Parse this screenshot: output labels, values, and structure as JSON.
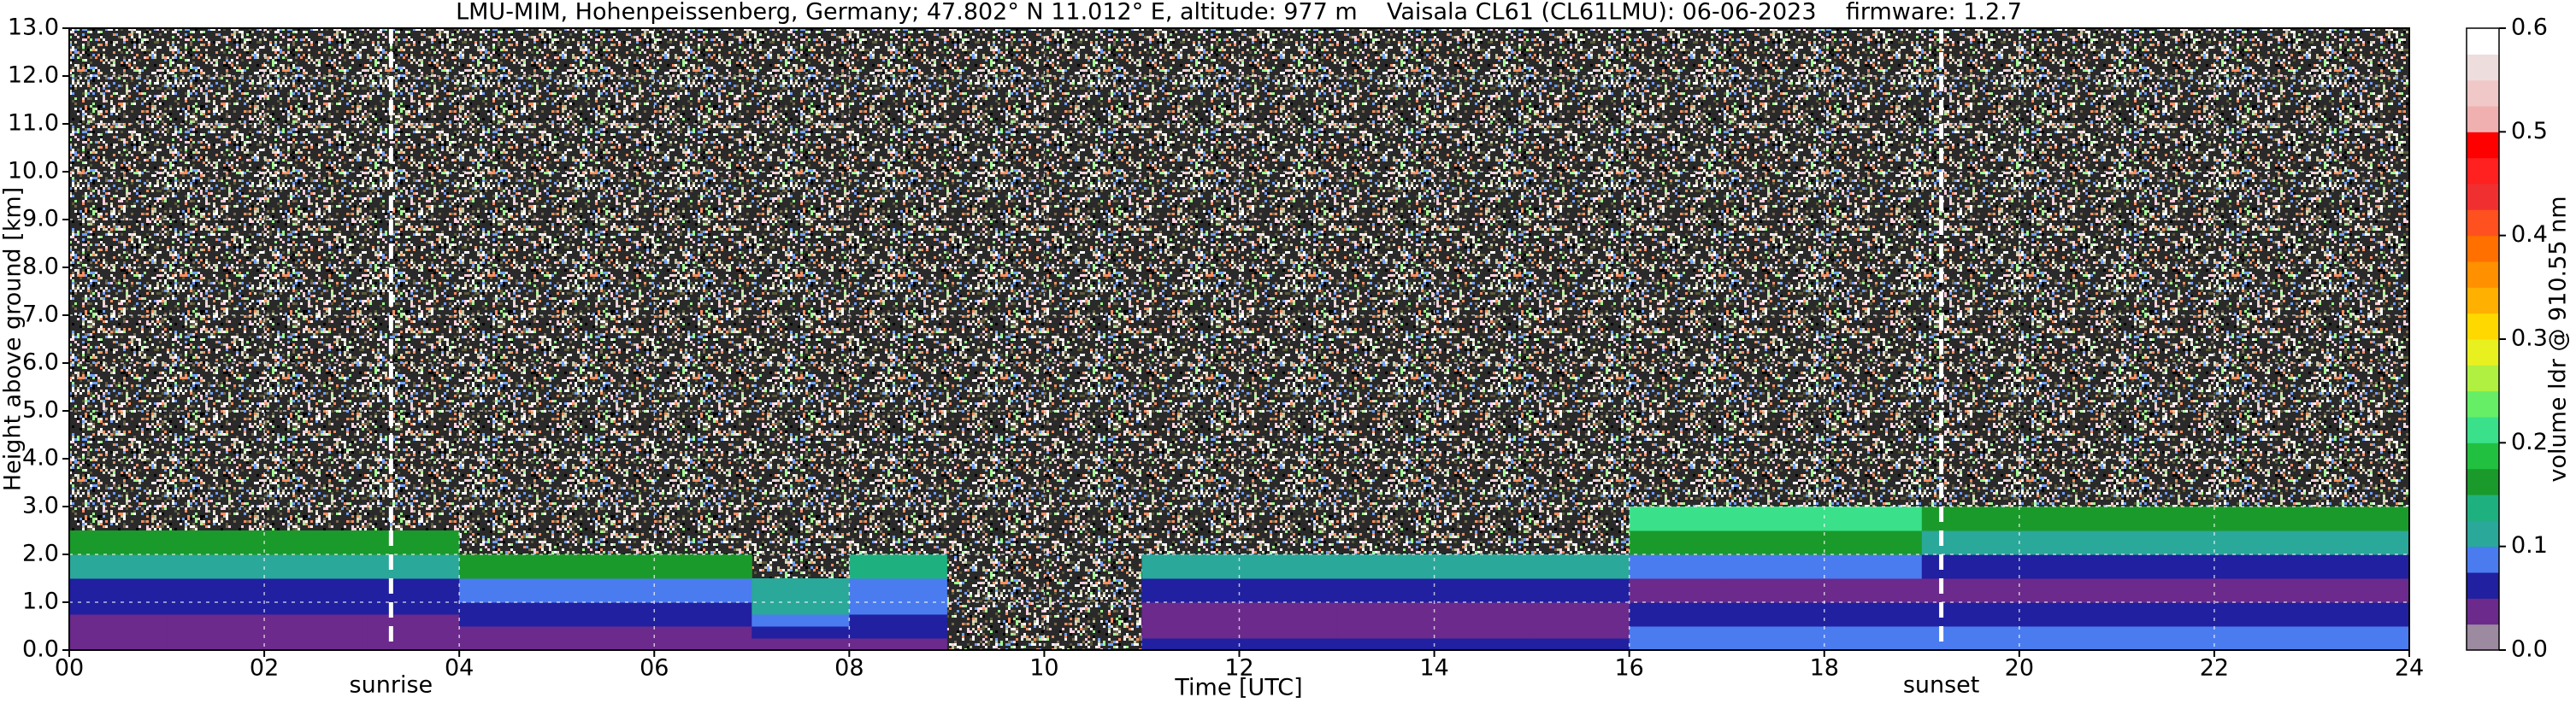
{
  "chart_data": {
    "type": "heatmap",
    "title": "LMU-MIM, Hohenpeissenberg, Germany; 47.802° N 11.012° E, altitude: 977 m    Vaisala CL61 (CL61LMU): 06-06-2023    firmware: 1.2.7",
    "x_label": "Time [UTC]",
    "y_label": "Height above ground [km]",
    "xlim": [
      0,
      24
    ],
    "ylim": [
      0,
      13
    ],
    "xticks": [
      {
        "value": 0,
        "label": "00"
      },
      {
        "value": 2,
        "label": "02"
      },
      {
        "value": 4,
        "label": "04"
      },
      {
        "value": 6,
        "label": "06"
      },
      {
        "value": 8,
        "label": "08"
      },
      10,
      12,
      14,
      16,
      18,
      20,
      22,
      24
    ],
    "yticks": [
      {
        "value": 0,
        "label": "0.0"
      },
      {
        "value": 1,
        "label": "1.0"
      },
      {
        "value": 2,
        "label": "2.0"
      },
      {
        "value": 3,
        "label": "3.0"
      },
      {
        "value": 4,
        "label": "4.0"
      },
      {
        "value": 5,
        "label": "5.0"
      },
      {
        "value": 6,
        "label": "6.0"
      },
      {
        "value": 7,
        "label": "7.0"
      },
      {
        "value": 8,
        "label": "8.0"
      },
      {
        "value": 9,
        "label": "9.0"
      },
      {
        "value": 10,
        "label": "10.0"
      },
      {
        "value": 11,
        "label": "11.0"
      },
      {
        "value": 12,
        "label": "12.0"
      },
      {
        "value": 13,
        "label": "13.0"
      }
    ],
    "grid": true,
    "x_edges": [
      0,
      1,
      2,
      3,
      4,
      5,
      6,
      7,
      8,
      9,
      10,
      11,
      12,
      13,
      14,
      15,
      16,
      17,
      18,
      19,
      20,
      21,
      22,
      23,
      24
    ],
    "y_edges": [
      0,
      0.25,
      0.5,
      0.75,
      1.0,
      1.5,
      2.0,
      2.5,
      3.0
    ],
    "z": [
      [
        0.03,
        0.03,
        0.03,
        0.03,
        0.03,
        0.03,
        0.03,
        0.04,
        0.03,
        null,
        null,
        0.05,
        0.05,
        0.05,
        0.05,
        0.05,
        0.09,
        0.09,
        0.09,
        0.09,
        0.09,
        0.09,
        0.09,
        0.09
      ],
      [
        0.03,
        0.03,
        0.03,
        0.03,
        0.04,
        0.04,
        0.04,
        0.06,
        0.05,
        null,
        null,
        0.04,
        0.04,
        0.04,
        0.04,
        0.04,
        0.08,
        0.08,
        0.08,
        0.08,
        0.08,
        0.08,
        0.08,
        0.08
      ],
      [
        0.04,
        0.04,
        0.04,
        0.04,
        0.06,
        0.06,
        0.06,
        0.08,
        0.07,
        null,
        null,
        0.03,
        0.03,
        0.03,
        0.03,
        0.03,
        0.06,
        0.06,
        0.06,
        0.07,
        0.07,
        0.07,
        0.07,
        0.07
      ],
      [
        0.06,
        0.06,
        0.06,
        0.06,
        0.07,
        0.07,
        0.07,
        0.1,
        0.08,
        null,
        null,
        0.04,
        0.04,
        0.04,
        0.04,
        0.04,
        0.05,
        0.05,
        0.05,
        0.06,
        0.06,
        0.06,
        0.06,
        0.06
      ],
      [
        0.07,
        0.07,
        0.07,
        0.07,
        0.09,
        0.09,
        0.09,
        0.12,
        0.09,
        null,
        null,
        0.06,
        0.06,
        0.06,
        0.06,
        0.06,
        0.04,
        0.04,
        0.04,
        0.04,
        0.04,
        0.04,
        0.04,
        0.04
      ],
      [
        0.12,
        0.12,
        0.12,
        0.12,
        0.15,
        0.15,
        0.15,
        null,
        0.13,
        null,
        null,
        0.12,
        0.12,
        0.12,
        0.12,
        0.12,
        0.09,
        0.09,
        0.09,
        0.05,
        0.05,
        0.05,
        0.05,
        0.05
      ],
      [
        0.15,
        0.15,
        0.15,
        0.15,
        null,
        null,
        null,
        null,
        null,
        null,
        null,
        null,
        null,
        null,
        null,
        null,
        0.15,
        0.15,
        0.15,
        0.12,
        0.12,
        0.12,
        0.12,
        0.12
      ],
      [
        null,
        null,
        null,
        null,
        null,
        null,
        null,
        null,
        null,
        null,
        null,
        null,
        null,
        null,
        null,
        null,
        0.2,
        0.2,
        0.2,
        0.17,
        0.17,
        0.17,
        0.17,
        0.17
      ]
    ],
    "vlines": [
      {
        "x": 3.3,
        "label": "sunrise"
      },
      {
        "x": 19.2,
        "label": "sunset"
      }
    ],
    "colorbar": {
      "label": "volume ldr @ 910.55 nm",
      "lim": [
        0,
        0.6
      ],
      "ticks": [
        {
          "value": 0,
          "label": "0.0"
        },
        0.1,
        0.2,
        0.3,
        0.4,
        0.5,
        0.6
      ],
      "bounds": [
        0,
        0.025,
        0.05,
        0.075,
        0.1,
        0.125,
        0.15,
        0.175,
        0.2,
        0.225,
        0.25,
        0.275,
        0.3,
        0.325,
        0.35,
        0.375,
        0.4,
        0.425,
        0.45,
        0.475,
        0.5,
        0.525,
        0.55,
        0.575,
        0.6
      ],
      "colors": [
        "#9c8aa0",
        "#6b2a8c",
        "#2020a0",
        "#4a7cf0",
        "#2aa89a",
        "#1fb080",
        "#1a9a2a",
        "#22c040",
        "#3ae08a",
        "#66ee66",
        "#b0f040",
        "#e8f020",
        "#ffd800",
        "#ffb000",
        "#ff9000",
        "#ff7000",
        "#ff5020",
        "#f03030",
        "#ff2020",
        "#ff0000",
        "#f0b0b0",
        "#f0c8c8",
        "#eedddd",
        "#ffffff"
      ]
    }
  }
}
